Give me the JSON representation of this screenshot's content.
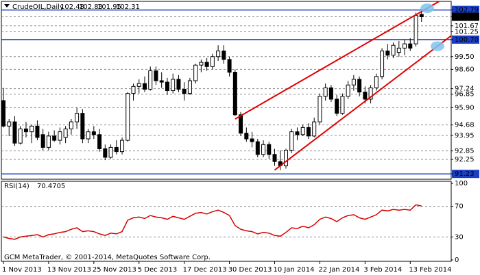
{
  "chart_data": [
    {
      "type": "candlestick",
      "title": "CrudeOIL,Daily",
      "categories": [
        "1 Nov 2013",
        null,
        null,
        null,
        null,
        null,
        null,
        null,
        "13 Nov 2013",
        null,
        null,
        null,
        null,
        null,
        null,
        null,
        "25 Nov 2013",
        null,
        null,
        null,
        null,
        null,
        null,
        null,
        "5 Dec 2013",
        null,
        null,
        null,
        null,
        null,
        null,
        null,
        "17 Dec 2013",
        null,
        null,
        null,
        null,
        null,
        null,
        null,
        "30 Dec 2013",
        null,
        null,
        null,
        null,
        null,
        null,
        null,
        "10 Jan 2014",
        null,
        null,
        null,
        null,
        null,
        null,
        null,
        "22 Jan 2014",
        null,
        null,
        null,
        null,
        null,
        null,
        null,
        "3 Feb 2014",
        null,
        null,
        null,
        null,
        null,
        null,
        null,
        "13 Feb 2014",
        null,
        null
      ],
      "open": [
        96.4,
        94.6,
        94.9,
        93.4,
        94.4,
        94.2,
        94.6,
        94.0,
        93.1,
        93.9,
        93.6,
        93.8,
        94.4,
        94.9,
        95.5,
        93.7,
        94.2,
        94.0,
        93.0,
        92.4,
        93.1,
        92.8,
        93.6,
        96.9,
        97.4,
        97.6,
        97.2,
        98.5,
        97.8,
        97.7,
        97.1,
        97.9,
        97.2,
        96.9,
        97.8,
        98.9,
        99.1,
        98.8,
        99.5,
        99.9,
        99.3,
        98.4,
        95.4,
        94.1,
        93.7,
        93.5,
        92.6,
        93.3,
        92.6,
        92.1,
        91.8,
        92.9,
        94.2,
        94.0,
        94.5,
        93.9,
        94.9,
        96.7,
        97.3,
        96.5,
        95.5,
        96.7,
        97.5,
        97.9,
        97.0,
        96.5,
        97.3,
        98.1,
        99.9,
        99.6,
        99.8,
        100.1,
        100.4,
        100.4,
        102.48
      ],
      "high": [
        97.3,
        95.1,
        95.3,
        94.6,
        94.9,
        94.7,
        95.0,
        94.4,
        94.2,
        94.3,
        94.5,
        94.6,
        95.1,
        95.9,
        95.8,
        94.4,
        94.6,
        94.4,
        93.3,
        93.3,
        93.6,
        93.8,
        97.0,
        97.6,
        97.9,
        98.1,
        98.8,
        98.8,
        98.4,
        98.0,
        98.3,
        98.2,
        97.7,
        98.0,
        99.0,
        99.3,
        99.4,
        99.7,
        100.3,
        100.3,
        99.5,
        98.6,
        95.6,
        94.5,
        94.2,
        93.7,
        93.6,
        93.5,
        93.0,
        92.9,
        93.0,
        94.4,
        94.5,
        94.7,
        94.8,
        95.2,
        96.9,
        97.6,
        97.5,
        96.8,
        96.9,
        97.8,
        98.2,
        98.1,
        97.4,
        97.5,
        98.3,
        100.1,
        100.4,
        100.5,
        100.6,
        100.7,
        100.8,
        102.6,
        102.83
      ],
      "low": [
        94.5,
        93.9,
        93.2,
        93.3,
        93.8,
        93.4,
        93.6,
        92.9,
        92.9,
        93.5,
        93.3,
        93.4,
        94.0,
        94.4,
        93.4,
        93.4,
        93.7,
        92.8,
        92.2,
        92.3,
        92.6,
        92.6,
        93.5,
        96.4,
        96.9,
        97.0,
        97.1,
        97.5,
        97.3,
        96.8,
        96.9,
        97.0,
        96.4,
        96.8,
        97.6,
        98.4,
        98.5,
        98.6,
        99.2,
        99.0,
        98.1,
        95.3,
        93.9,
        93.5,
        93.1,
        92.4,
        92.4,
        92.3,
        91.8,
        91.5,
        91.6,
        92.7,
        93.6,
        93.9,
        93.7,
        93.8,
        94.7,
        96.4,
        96.3,
        95.3,
        95.4,
        96.5,
        97.1,
        96.7,
        96.2,
        96.2,
        97.1,
        97.9,
        99.3,
        99.4,
        99.5,
        99.6,
        99.9,
        100.2,
        101.95
      ],
      "close": [
        94.6,
        94.9,
        93.4,
        94.4,
        94.2,
        94.6,
        93.8,
        93.1,
        93.9,
        93.6,
        94.2,
        94.4,
        94.9,
        95.5,
        93.7,
        94.2,
        94.0,
        93.0,
        92.4,
        93.1,
        92.8,
        93.6,
        96.9,
        97.4,
        97.6,
        97.2,
        98.5,
        97.8,
        97.7,
        97.1,
        97.9,
        97.2,
        96.9,
        97.8,
        98.9,
        99.1,
        98.8,
        99.5,
        99.9,
        99.3,
        98.4,
        95.4,
        94.1,
        93.7,
        93.5,
        92.6,
        93.3,
        92.6,
        92.1,
        91.8,
        92.9,
        94.2,
        94.0,
        94.5,
        93.9,
        94.9,
        96.7,
        97.3,
        96.5,
        95.5,
        96.7,
        97.5,
        97.9,
        97.0,
        96.5,
        97.3,
        98.1,
        99.9,
        99.6,
        100.3,
        100.1,
        100.4,
        100.1,
        102.4,
        102.31
      ],
      "ylim": [
        90.95,
        103.3
      ],
      "yticks": [
        102.79,
        102.31,
        101.67,
        101.25,
        {
          "value": 100.7,
          "label": "100.70"
        },
        {
          "value": 99.5,
          "label": "99.50"
        },
        {
          "value": 98.6,
          "label": "98.60"
        },
        97.24,
        96.85,
        {
          "value": 95.9,
          "label": "95.90"
        },
        94.68,
        93.95,
        92.85,
        92.25,
        91.23
      ],
      "grid": true,
      "hlines": [
        {
          "value": 102.79,
          "color": "#1c3fc0"
        },
        {
          "value": 100.7,
          "color": "#1c3fc0"
        },
        {
          "value": 91.23,
          "color": "#1c3fc0"
        }
      ],
      "trendlines": [
        {
          "from": [
            41,
            95.1
          ],
          "to": [
            78,
            103.6
          ],
          "color": "#e00000"
        },
        {
          "from": [
            48,
            91.5
          ],
          "to": [
            80,
            101.2
          ],
          "color": "#e00000"
        }
      ]
    },
    {
      "type": "line",
      "series": [
        {
          "name": "RSI(14)",
          "color": "#d80000",
          "values": [
            30,
            28,
            27,
            30,
            31,
            32,
            33,
            30,
            33,
            34,
            36,
            37,
            40,
            42,
            37,
            38,
            37,
            34,
            32,
            35,
            34,
            37,
            52,
            55,
            56,
            54,
            58,
            56,
            55,
            53,
            57,
            55,
            53,
            57,
            61,
            62,
            60,
            63,
            65,
            62,
            58,
            45,
            40,
            38,
            37,
            34,
            36,
            35,
            32,
            31,
            36,
            42,
            41,
            44,
            42,
            46,
            53,
            56,
            54,
            50,
            55,
            58,
            59,
            55,
            53,
            56,
            59,
            65,
            64,
            66,
            65,
            66,
            65,
            72,
            70.4705
          ]
        }
      ],
      "ylim": [
        0,
        100
      ],
      "yticks": [
        0,
        30,
        70,
        100
      ],
      "grid": true
    }
  ],
  "footer": "GCM MetaTrader, © 2001-2014, MetaQuotes Software Corp."
}
